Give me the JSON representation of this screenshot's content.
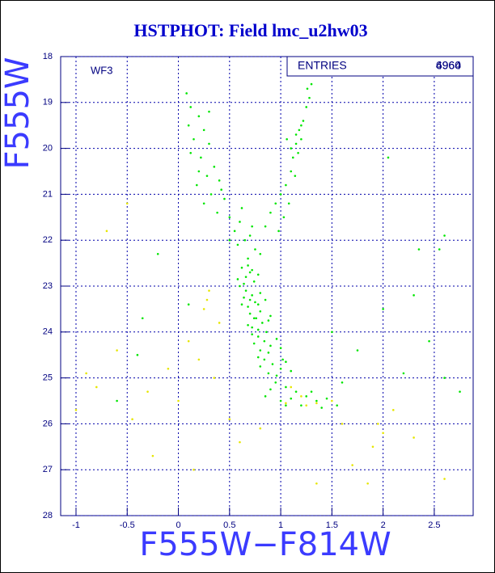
{
  "chart_data": {
    "type": "scatter",
    "title": "HSTPHOT: Field lmc_u2hw03",
    "x_label": "F555W−F814W",
    "y_label": "F555W",
    "annotation": "WF3",
    "stats_label": "ENTRIES",
    "stats_values": [
      "6964",
      "4960"
    ],
    "xlim": [
      -1.15,
      2.88
    ],
    "ylim": [
      28,
      18
    ],
    "grid": true,
    "xticks": [
      -1,
      -0.5,
      0,
      0.5,
      1,
      1.5,
      2,
      2.5
    ],
    "yticks": [
      18,
      19,
      20,
      21,
      22,
      23,
      24,
      25,
      26,
      27,
      28
    ],
    "series": [
      {
        "color": "#00e600",
        "x": [
          0.08,
          0.12,
          0.2,
          0.25,
          0.15,
          0.3,
          0.22,
          0.12,
          0.35,
          0.28,
          0.18,
          0.4,
          0.32,
          0.25,
          0.45,
          0.38,
          0.2,
          0.1,
          0.3,
          0.42,
          0.5,
          0.55,
          0.6,
          0.65,
          0.7,
          0.75,
          0.58,
          0.68,
          0.8,
          0.85,
          0.9,
          0.95,
          1.0,
          0.62,
          0.72,
          0.5,
          1.05,
          1.1,
          1.12,
          1.15,
          1.18,
          1.2,
          1.22,
          1.25,
          1.28,
          1.3,
          1.1,
          1.08,
          1.03,
          1.15,
          1.2,
          1.26,
          1.17,
          0.98,
          1.06,
          1.14,
          0.62,
          0.7,
          0.66,
          0.74,
          0.6,
          0.68,
          0.78,
          0.64,
          0.72,
          0.58,
          0.66,
          0.72,
          0.7,
          0.78,
          0.64,
          0.8,
          0.68,
          0.75,
          0.62,
          0.85,
          0.7,
          0.76,
          0.82,
          0.72,
          0.8,
          0.88,
          0.68,
          0.78,
          0.9,
          0.74,
          0.78,
          0.84,
          0.9,
          0.8,
          0.96,
          0.74,
          0.88,
          0.72,
          1.0,
          0.86,
          0.84,
          0.92,
          1.0,
          0.88,
          1.05,
          0.8,
          0.96,
          1.1,
          0.78,
          1.02,
          0.95,
          1.05,
          1.15,
          1.25,
          1.0,
          1.35,
          1.45,
          1.2,
          0.9,
          1.1,
          1.3,
          1.55,
          1.4,
          0.85,
          1.05,
          2.05,
          2.6,
          2.55,
          2.35,
          2.3,
          2.0,
          2.45,
          2.2,
          2.6,
          1.75,
          1.6,
          -0.4,
          -0.2,
          -0.6,
          0.1,
          1.5,
          2.75,
          -0.35
        ],
        "values": [
          18.8,
          19.1,
          19.3,
          19.6,
          19.8,
          19.9,
          20.2,
          20.1,
          20.4,
          20.6,
          20.8,
          20.7,
          21.0,
          21.2,
          21.1,
          21.4,
          20.5,
          19.5,
          19.2,
          20.9,
          21.5,
          21.8,
          21.6,
          22.0,
          21.9,
          22.2,
          22.1,
          22.4,
          22.3,
          21.7,
          21.4,
          21.2,
          21.0,
          21.3,
          21.7,
          22.0,
          20.8,
          20.5,
          20.2,
          19.9,
          19.6,
          19.5,
          19.4,
          19.1,
          18.9,
          18.6,
          20.0,
          21.2,
          21.5,
          19.7,
          19.8,
          18.7,
          20.1,
          21.8,
          19.8,
          20.6,
          22.6,
          22.7,
          22.8,
          22.9,
          23.0,
          22.55,
          22.75,
          22.95,
          22.65,
          22.85,
          23.1,
          23.2,
          23.3,
          23.4,
          23.25,
          23.15,
          23.45,
          23.35,
          23.4,
          23.3,
          23.6,
          23.7,
          23.8,
          23.9,
          23.55,
          23.75,
          23.85,
          23.95,
          23.65,
          23.7,
          24.1,
          24.2,
          24.3,
          24.4,
          24.15,
          24.25,
          24.45,
          24.05,
          24.35,
          24.0,
          24.6,
          24.7,
          24.8,
          24.9,
          24.65,
          24.75,
          24.95,
          24.85,
          24.55,
          24.6,
          25.1,
          25.2,
          25.3,
          25.4,
          25.5,
          25.5,
          25.45,
          25.6,
          25.25,
          25.45,
          25.3,
          25.6,
          25.65,
          25.4,
          25.6,
          20.2,
          21.9,
          22.2,
          22.2,
          23.2,
          23.5,
          24.2,
          24.9,
          25.0,
          24.4,
          25.1,
          24.5,
          22.3,
          25.5,
          23.4,
          24.0,
          25.3,
          23.7
        ]
      },
      {
        "color": "#e6e600",
        "x": [
          0.3,
          0.25,
          0.4,
          0.1,
          0.2,
          -0.1,
          0.35,
          -0.3,
          -0.6,
          -0.8,
          -1.0,
          -0.9,
          0.5,
          0.0,
          1.2,
          1.35,
          1.5,
          1.25,
          1.6,
          1.9,
          1.7,
          2.0,
          2.3,
          2.6,
          1.85,
          1.35,
          0.15,
          -0.25,
          0.8,
          1.1,
          -0.5,
          -0.7,
          -0.45,
          0.6,
          2.1,
          1.95,
          1.05,
          0.28
        ],
        "values": [
          23.1,
          23.5,
          23.8,
          24.2,
          24.6,
          24.8,
          25.0,
          25.3,
          24.4,
          25.2,
          25.7,
          24.9,
          25.9,
          25.5,
          25.4,
          25.55,
          25.5,
          25.6,
          26.0,
          26.5,
          26.9,
          26.2,
          26.3,
          27.2,
          27.3,
          27.3,
          27.0,
          26.7,
          26.1,
          25.2,
          21.2,
          21.8,
          25.9,
          26.4,
          25.7,
          26.0,
          25.55,
          23.3
        ]
      }
    ]
  }
}
